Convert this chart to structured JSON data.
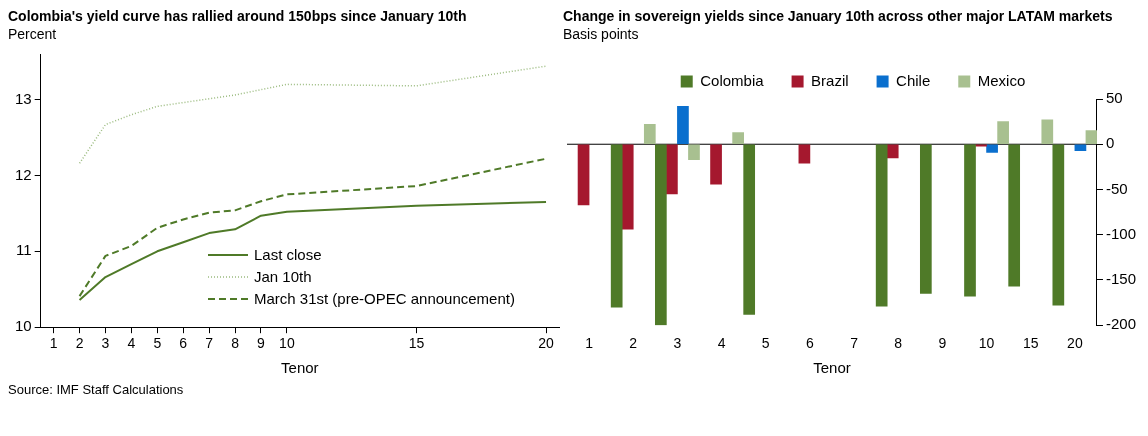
{
  "chart_data": [
    {
      "type": "line",
      "title": "Colombia's yield curve has rallied around 150bps since January 10th",
      "subtitle": "Percent",
      "xlabel": "Tenor",
      "x": [
        2,
        3,
        4,
        5,
        6,
        7,
        8,
        9,
        10,
        15,
        20
      ],
      "series": [
        {
          "name": "Last close",
          "color": "#4f7a28",
          "line_style": "solid",
          "values": [
            10.36,
            10.66,
            10.83,
            11.0,
            11.12,
            11.24,
            11.29,
            11.47,
            11.52,
            11.6,
            11.65
          ]
        },
        {
          "name": "Jan 10th",
          "color": "#9bbb7f",
          "line_style": "dotted",
          "values": [
            12.16,
            12.67,
            12.8,
            12.91,
            12.96,
            13.01,
            13.06,
            13.13,
            13.2,
            13.18,
            13.44
          ]
        },
        {
          "name": "March 31st (pre-OPEC announcement)",
          "color": "#4f7a28",
          "line_style": "dashed",
          "values": [
            10.41,
            10.94,
            11.07,
            11.31,
            11.42,
            11.51,
            11.54,
            11.66,
            11.75,
            11.86,
            12.22
          ]
        }
      ],
      "xlim": [
        0.5,
        20.5
      ],
      "xticks": [
        1,
        2,
        3,
        4,
        5,
        6,
        7,
        8,
        9,
        10,
        15,
        20
      ],
      "ylim": [
        10,
        13.6
      ],
      "yticks": [
        10,
        11,
        12,
        13
      ],
      "grid": false,
      "legend": "bottom",
      "marker": "none",
      "annotations": [
        "Source: IMF Staff Calculations"
      ]
    },
    {
      "type": "bar",
      "title": "Change in sovereign yields since January 10th across other major LATAM markets",
      "subtitle": "Basis points",
      "xlabel": "Tenor",
      "categories": [
        "1",
        "2",
        "3",
        "4",
        "5",
        "6",
        "7",
        "8",
        "9",
        "10",
        "15",
        "20"
      ],
      "series": [
        {
          "name": "Colombia",
          "color": "#4f7a28",
          "values": [
            null,
            -180,
            -200,
            null,
            -188,
            null,
            null,
            -179,
            -165,
            -168,
            -157,
            -178
          ]
        },
        {
          "name": "Brazil",
          "color": "#a5182e",
          "values": [
            -67,
            -94,
            -55,
            -44,
            null,
            -21,
            null,
            -15,
            null,
            -2,
            null,
            null
          ]
        },
        {
          "name": "Chile",
          "color": "#0a6fce",
          "values": [
            null,
            null,
            42,
            null,
            null,
            null,
            null,
            null,
            null,
            -9,
            null,
            -7
          ]
        },
        {
          "name": "Mexico",
          "color": "#a8c090",
          "values": [
            null,
            22,
            -17,
            13,
            null,
            null,
            null,
            null,
            null,
            25,
            27,
            15
          ]
        }
      ],
      "ylim": [
        -200,
        50
      ],
      "yticks": [
        -200,
        -150,
        -100,
        -50,
        0,
        50
      ],
      "grid": false,
      "legend": "top",
      "ref_lines": [
        {
          "axis": "y",
          "value": 0,
          "color": "#000000"
        }
      ]
    }
  ]
}
